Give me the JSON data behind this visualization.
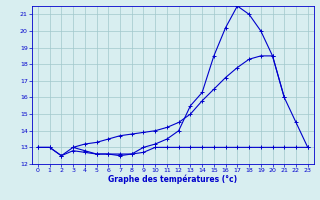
{
  "title": "Graphe des températures (°c)",
  "bg_color": "#d8eef0",
  "grid_color": "#a0c8cc",
  "line_color": "#0000cc",
  "xlim": [
    -0.5,
    23.5
  ],
  "ylim": [
    12,
    21.5
  ],
  "xticks": [
    0,
    1,
    2,
    3,
    4,
    5,
    6,
    7,
    8,
    9,
    10,
    11,
    12,
    13,
    14,
    15,
    16,
    17,
    18,
    19,
    20,
    21,
    22,
    23
  ],
  "yticks": [
    12,
    13,
    14,
    15,
    16,
    17,
    18,
    19,
    20,
    21
  ],
  "series1_x": [
    0,
    1,
    2,
    3,
    4,
    5,
    6,
    7,
    8,
    9,
    10,
    11,
    12,
    13,
    14,
    15,
    16,
    17,
    18,
    19,
    20,
    21,
    22,
    23
  ],
  "series1_y": [
    13.0,
    13.0,
    12.5,
    12.8,
    12.7,
    12.6,
    12.6,
    12.6,
    12.6,
    12.7,
    13.0,
    13.0,
    13.0,
    13.0,
    13.0,
    13.0,
    13.0,
    13.0,
    13.0,
    13.0,
    13.0,
    13.0,
    13.0,
    13.0
  ],
  "series2_x": [
    0,
    1,
    2,
    3,
    4,
    5,
    6,
    7,
    8,
    9,
    10,
    11,
    12,
    13,
    14,
    15,
    16,
    17,
    18,
    19,
    20,
    21,
    22,
    23
  ],
  "series2_y": [
    13.0,
    13.0,
    12.5,
    13.0,
    12.8,
    12.6,
    12.6,
    12.5,
    12.6,
    13.0,
    13.2,
    13.5,
    14.0,
    15.5,
    16.3,
    18.5,
    20.2,
    21.5,
    21.0,
    20.0,
    18.5,
    16.0,
    14.5,
    13.0
  ],
  "series3_x": [
    3,
    4,
    5,
    6,
    7,
    8,
    9,
    10,
    11,
    12,
    13,
    14,
    15,
    16,
    17,
    18,
    19,
    20,
    21
  ],
  "series3_y": [
    13.0,
    13.2,
    13.3,
    13.5,
    13.7,
    13.8,
    13.9,
    14.0,
    14.2,
    14.5,
    15.0,
    15.8,
    16.5,
    17.2,
    17.8,
    18.3,
    18.5,
    18.5,
    16.0
  ]
}
